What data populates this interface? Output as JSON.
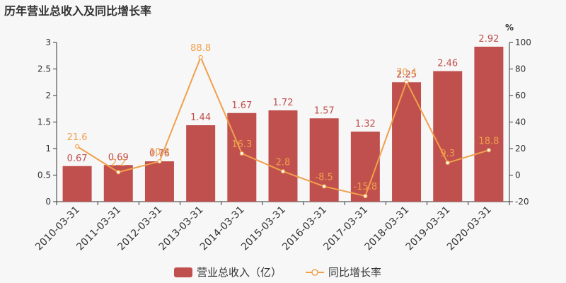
{
  "chart_data": {
    "type": "bar",
    "title": "历年营业总收入及同比增长率",
    "categories": [
      "2010-03-31",
      "2011-03-31",
      "2012-03-31",
      "2013-03-31",
      "2014-03-31",
      "2015-03-31",
      "2016-03-31",
      "2017-03-31",
      "2018-03-31",
      "2019-03-31",
      "2020-03-31"
    ],
    "series": [
      {
        "name": "营业总收入（亿）",
        "type": "bar",
        "axis": "left",
        "color": "#c0504d",
        "label_color": "#c0504d",
        "values": [
          0.67,
          0.69,
          0.76,
          1.44,
          1.67,
          1.72,
          1.57,
          1.32,
          2.25,
          2.46,
          2.92
        ]
      },
      {
        "name": "同比增长率",
        "type": "line",
        "axis": "right",
        "color": "#f0a04b",
        "label_color": "#f0a04b",
        "values": [
          21.6,
          2.2,
          10.3,
          88.8,
          16.3,
          2.8,
          -8.5,
          -15.8,
          70.4,
          9.3,
          18.8
        ]
      }
    ],
    "y_left": {
      "ylim": [
        0,
        3
      ],
      "ticks": [
        "0",
        "0.5",
        "1",
        "1.5",
        "2",
        "2.5",
        "3"
      ],
      "tick_values": [
        0,
        0.5,
        1,
        1.5,
        2,
        2.5,
        3
      ]
    },
    "y_right": {
      "ylim": [
        -20,
        100
      ],
      "unit": "%",
      "ticks": [
        "-20",
        "0",
        "20",
        "40",
        "60",
        "80",
        "100"
      ],
      "tick_values": [
        -20,
        0,
        20,
        40,
        60,
        80,
        100
      ]
    },
    "grid": false,
    "legend": "bottom-center"
  }
}
